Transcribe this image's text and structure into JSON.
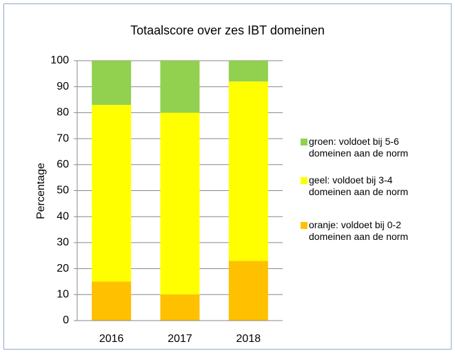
{
  "chart_data": {
    "type": "stacked_bar",
    "title": "Totaalscore over zes IBT domeinen",
    "y_label": "Percentage",
    "categories": [
      "2016",
      "2017",
      "2018"
    ],
    "series": [
      {
        "name": "oranje: voldoet bij 0-2 domeinen aan de norm",
        "color": "#ffc000",
        "values": [
          15,
          10,
          23
        ]
      },
      {
        "name": "geel: voldoet bij 3-4 domeinen aan de norm",
        "color": "#ffff00",
        "values": [
          68,
          70,
          69
        ]
      },
      {
        "name": "groen: voldoet bij 5-6 domeinen aan de norm",
        "color": "#92d050",
        "values": [
          17,
          20,
          8
        ]
      }
    ],
    "ylim": [
      0,
      100
    ],
    "yticks": [
      0,
      10,
      20,
      30,
      40,
      50,
      60,
      70,
      80,
      90,
      100
    ],
    "grid": true,
    "legend": "right"
  }
}
